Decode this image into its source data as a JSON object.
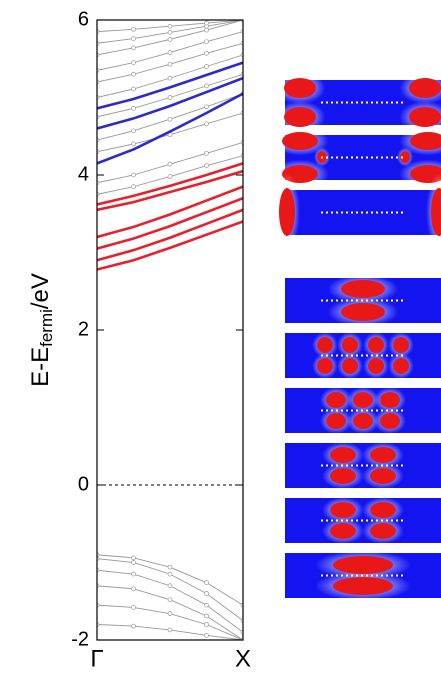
{
  "chart_data": {
    "type": "line",
    "y_label": {
      "main": "E-E",
      "subscript": "fermi",
      "suffix": "/eV"
    },
    "x": [
      0,
      0.25,
      0.5,
      0.75,
      1
    ],
    "xlim": [
      0,
      1
    ],
    "xticks": [
      {
        "value": 0,
        "label": "Γ"
      },
      {
        "value": 1,
        "label": "X"
      }
    ],
    "ylim": [
      -2,
      6
    ],
    "yticks": [
      -2,
      0,
      2,
      4,
      6
    ],
    "fermi_level": 0,
    "series": [
      {
        "color": "#999999",
        "values": [
          3.75,
          3.85,
          3.98,
          4.12,
          4.25
        ]
      },
      {
        "color": "#999999",
        "values": [
          3.9,
          4.0,
          4.14,
          4.28,
          4.42
        ]
      },
      {
        "color": "#999999",
        "values": [
          4.3,
          4.4,
          4.52,
          4.66,
          4.8
        ]
      },
      {
        "color": "#999999",
        "values": [
          4.45,
          4.57,
          4.72,
          4.88,
          5.05
        ]
      },
      {
        "color": "#999999",
        "values": [
          4.75,
          4.86,
          5.0,
          5.15,
          5.3
        ]
      },
      {
        "color": "#999999",
        "values": [
          5.0,
          5.11,
          5.25,
          5.4,
          5.55
        ]
      },
      {
        "color": "#999999",
        "values": [
          5.2,
          5.3,
          5.43,
          5.57,
          5.7
        ]
      },
      {
        "color": "#999999",
        "values": [
          5.35,
          5.45,
          5.58,
          5.72,
          5.85
        ]
      },
      {
        "color": "#999999",
        "values": [
          5.55,
          5.64,
          5.75,
          5.87,
          6.0
        ]
      },
      {
        "color": "#999999",
        "values": [
          5.7,
          5.76,
          5.84,
          5.92,
          6.0
        ]
      },
      {
        "color": "#999999",
        "values": [
          5.85,
          5.88,
          5.92,
          5.96,
          6.0
        ]
      },
      {
        "color": "#999999",
        "values": [
          -0.9,
          -0.94,
          -1.06,
          -1.26,
          -1.55
        ]
      },
      {
        "color": "#999999",
        "values": [
          -0.95,
          -1.0,
          -1.15,
          -1.4,
          -1.75
        ]
      },
      {
        "color": "#999999",
        "values": [
          -1.1,
          -1.15,
          -1.3,
          -1.55,
          -1.9
        ]
      },
      {
        "color": "#999999",
        "values": [
          -1.3,
          -1.34,
          -1.48,
          -1.69,
          -2.0
        ]
      },
      {
        "color": "#999999",
        "values": [
          -1.55,
          -1.58,
          -1.66,
          -1.8,
          -2.0
        ]
      },
      {
        "color": "#999999",
        "values": [
          -1.8,
          -1.82,
          -1.87,
          -1.94,
          -2.0
        ]
      },
      {
        "color": "#e8202a",
        "values": [
          2.78,
          2.9,
          3.06,
          3.23,
          3.4
        ]
      },
      {
        "color": "#e8202a",
        "values": [
          2.9,
          3.03,
          3.19,
          3.37,
          3.55
        ]
      },
      {
        "color": "#e8202a",
        "values": [
          3.05,
          3.18,
          3.34,
          3.52,
          3.7
        ]
      },
      {
        "color": "#e8202a",
        "values": [
          3.2,
          3.33,
          3.49,
          3.67,
          3.85
        ]
      },
      {
        "color": "#e8202a",
        "values": [
          3.55,
          3.65,
          3.78,
          3.91,
          4.05
        ]
      },
      {
        "color": "#e8202a",
        "values": [
          3.62,
          3.73,
          3.86,
          4.0,
          4.15
        ]
      },
      {
        "color": "#2a2ad0",
        "values": [
          4.15,
          4.33,
          4.56,
          4.8,
          5.05
        ]
      },
      {
        "color": "#2a2ad0",
        "values": [
          4.6,
          4.73,
          4.89,
          5.07,
          5.25
        ]
      },
      {
        "color": "#2a2ad0",
        "values": [
          4.86,
          4.98,
          5.13,
          5.29,
          5.45
        ]
      }
    ]
  }
}
